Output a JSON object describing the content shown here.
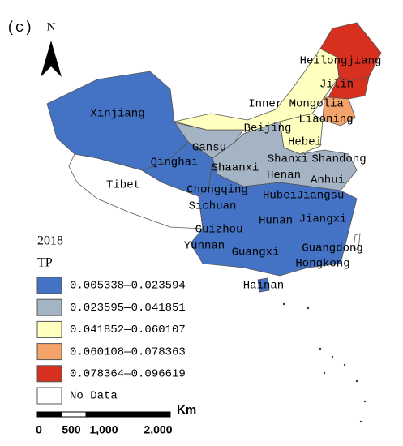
{
  "panel_label": "(c)",
  "north": "N",
  "provinces": [
    "Heilongjiang",
    "Jilin",
    "Inner Mongolia",
    "Liaoning",
    "Beijing",
    "Hebei",
    "Xinjiang",
    "Gansu",
    "Shanxi",
    "Shandong",
    "Qinghai",
    "Shaanxi",
    "Henan",
    "Anhui",
    "Tibet",
    "Chongqing",
    "Hubei",
    "Jiangsu",
    "Sichuan",
    "Jiangxi",
    "Hunan",
    "Guizhou",
    "Yunnan",
    "Guangxi",
    "Guangdong",
    "Hongkong",
    "Hainan"
  ],
  "legend": {
    "year": "2018",
    "title": "TP",
    "items": [
      {
        "label": "0.005338—0.023594",
        "color": "#4472c4"
      },
      {
        "label": "0.023595—0.041851",
        "color": "#a5b4c4"
      },
      {
        "label": "0.041852—0.060107",
        "color": "#ffffc0"
      },
      {
        "label": "0.060108—0.078363",
        "color": "#f4a36b"
      },
      {
        "label": "0.078364—0.096619",
        "color": "#d7301f"
      },
      {
        "label": "No Data",
        "color": "#ffffff"
      }
    ]
  },
  "scale": {
    "unit": "Km",
    "labels": [
      "0",
      "500",
      "1,000",
      "2,000"
    ]
  }
}
